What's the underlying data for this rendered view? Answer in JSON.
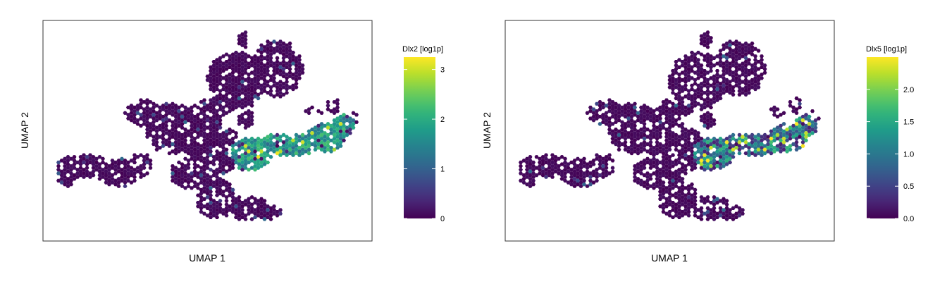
{
  "chart_data": [
    {
      "type": "hexbin-scatter",
      "gene": "Dlx2",
      "xlabel": "UMAP 1",
      "ylabel": "UMAP 2",
      "legend_title": "Dlx2 [log1p]",
      "colormap": "viridis",
      "range": [
        0,
        3.25
      ],
      "ticks": [
        0,
        1,
        2,
        3
      ],
      "tick_labels": [
        "0",
        "1",
        "2",
        "3"
      ]
    },
    {
      "type": "hexbin-scatter",
      "gene": "Dlx5",
      "xlabel": "UMAP 1",
      "ylabel": "UMAP 2",
      "legend_title": "Dlx5 [log1p]",
      "colormap": "viridis",
      "range": [
        0,
        2.5
      ],
      "ticks": [
        0,
        0.5,
        1,
        1.5,
        2
      ],
      "tick_labels": [
        "0.0",
        "0.5",
        "1.0",
        "1.5",
        "2.0"
      ]
    }
  ]
}
